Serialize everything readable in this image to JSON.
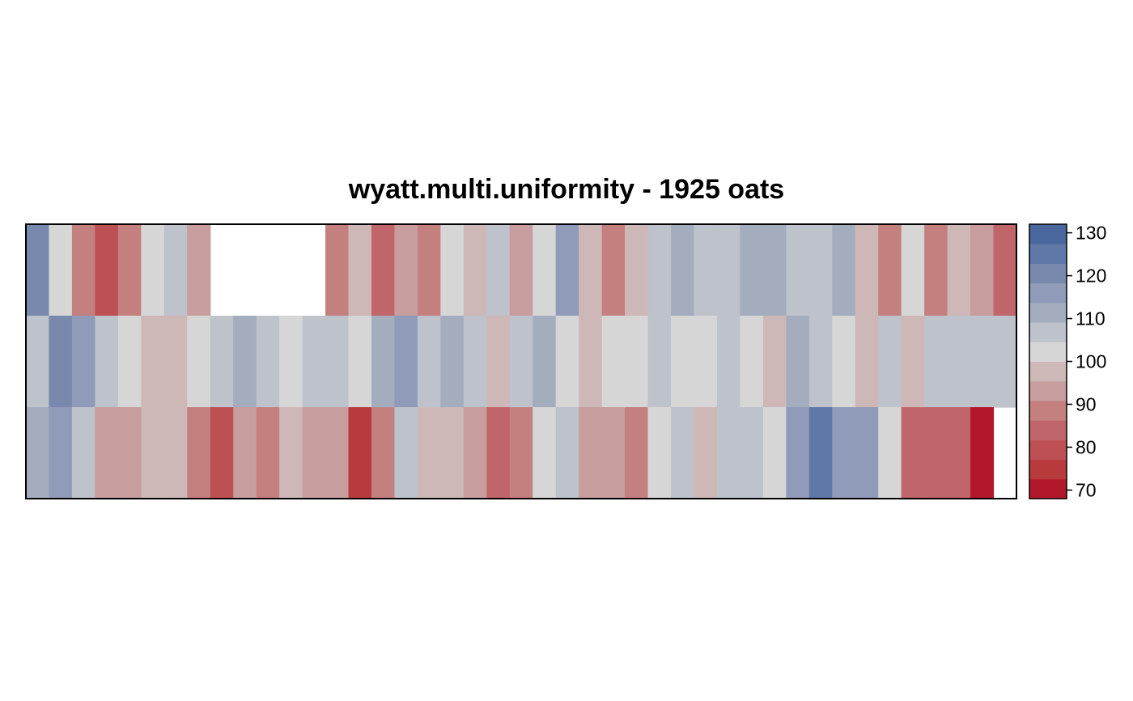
{
  "chart_data": {
    "type": "heatmap",
    "title": "wyatt.multi.uniformity - 1925 oats",
    "xlabel": "",
    "ylabel": "",
    "n_cols": 43,
    "n_rows": 3,
    "rows": [
      [
        122,
        100,
        88,
        80,
        88,
        100,
        106,
        92,
        null,
        null,
        null,
        null,
        null,
        88,
        96,
        84,
        92,
        88,
        100,
        96,
        106,
        92,
        100,
        118,
        96,
        88,
        96,
        106,
        110,
        106,
        106,
        110,
        110,
        106,
        106,
        110,
        96,
        88,
        100,
        88,
        96,
        92,
        82
      ],
      [
        106,
        122,
        114,
        106,
        100,
        96,
        96,
        100,
        106,
        110,
        106,
        100,
        106,
        106,
        100,
        110,
        114,
        106,
        110,
        106,
        96,
        106,
        110,
        100,
        96,
        100,
        100,
        106,
        100,
        100,
        106,
        100,
        96,
        110,
        106,
        100,
        96,
        106,
        96,
        106,
        106,
        106,
        106
      ],
      [
        110,
        114,
        106,
        92,
        92,
        96,
        96,
        88,
        80,
        92,
        88,
        96,
        92,
        92,
        76,
        88,
        106,
        96,
        96,
        92,
        84,
        88,
        100,
        106,
        92,
        92,
        88,
        100,
        106,
        96,
        106,
        106,
        100,
        114,
        126,
        118,
        114,
        100,
        82,
        82,
        84,
        72,
        null
      ]
    ],
    "colorbar": {
      "min": 68,
      "max": 132,
      "ticks": [
        70,
        80,
        90,
        100,
        110,
        120,
        130
      ],
      "colors": [
        "#b2182b",
        "#b83a3c",
        "#bd5053",
        "#c06569",
        "#c4807f",
        "#c79d9d",
        "#cdb8b7",
        "#d6d6d6",
        "#bdc2cb",
        "#a3adbe",
        "#8f9bb8",
        "#7989ad",
        "#5f78a8",
        "#4a679d"
      ]
    }
  }
}
